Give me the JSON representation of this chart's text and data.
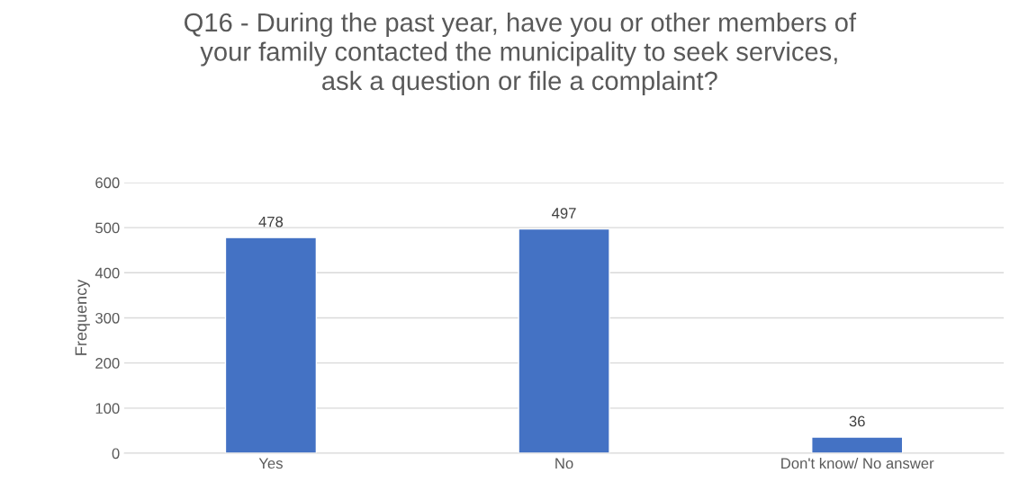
{
  "chart_data": {
    "type": "bar",
    "title": "Q16 - During the past year, have you or other members of\nyour family contacted the municipality to seek services,\nask a question or file a complaint?",
    "ylabel": "Frequency",
    "categories": [
      "Yes",
      "No",
      "Don't know/ No answer"
    ],
    "values": [
      478,
      497,
      36
    ],
    "color": "#4472c4",
    "ylim": [
      0,
      600
    ],
    "yticks": [
      0,
      100,
      200,
      300,
      400,
      500,
      600
    ],
    "grid": "y",
    "data_labels": true,
    "legend": false
  }
}
